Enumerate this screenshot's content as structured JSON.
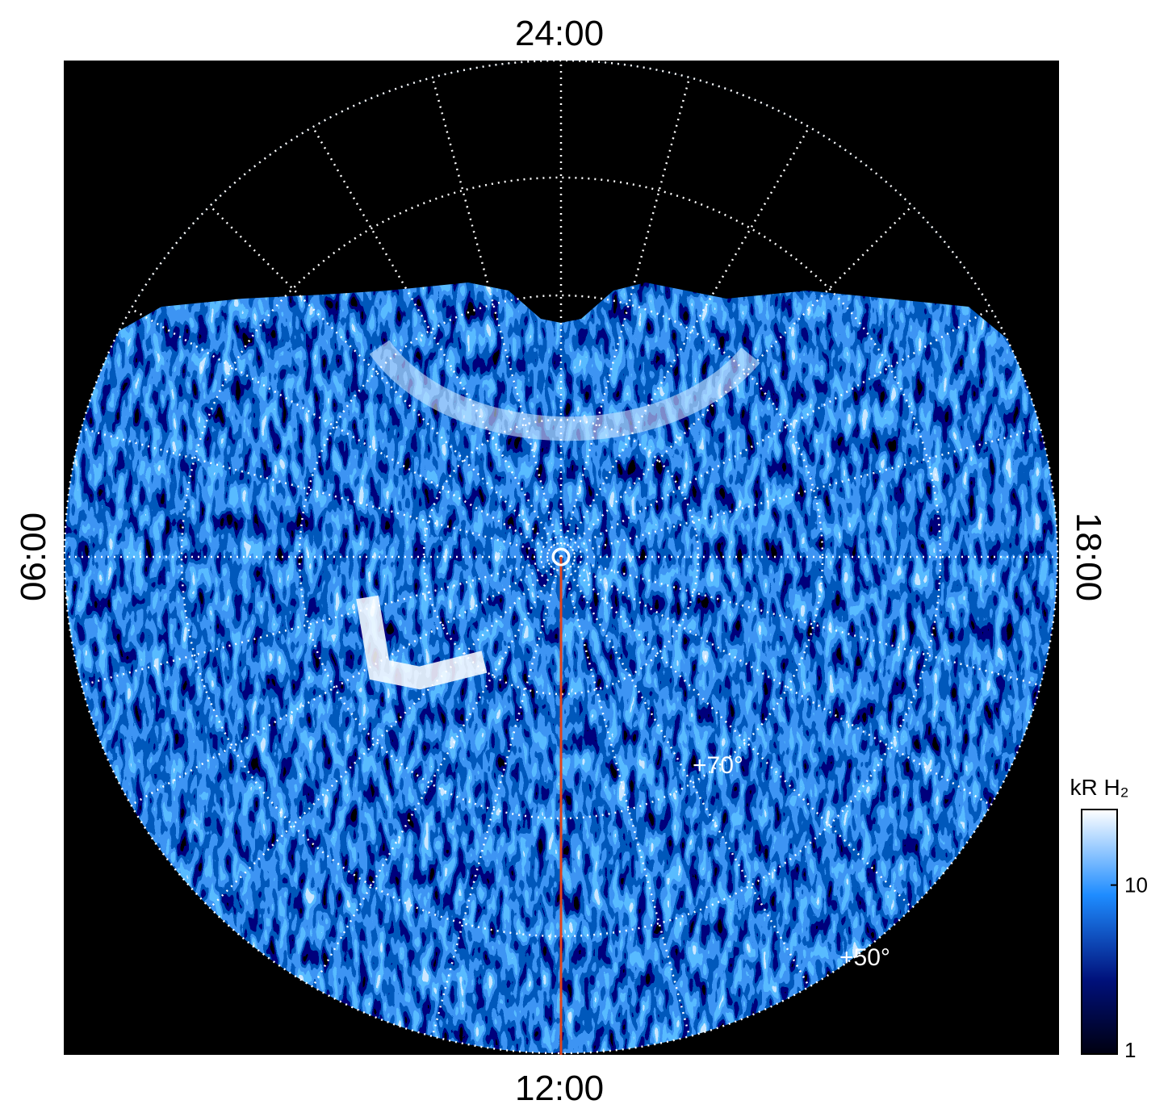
{
  "chart_data": {
    "type": "polar-image",
    "top_label": "24:00",
    "bottom_label": "12:00",
    "left_label": "06:00",
    "right_label": "18:00",
    "annotations": [
      "+70°",
      "+50°"
    ],
    "colorbar": {
      "label": "kR H₂",
      "lim": [
        1,
        28
      ],
      "ticks": [
        1,
        10
      ],
      "log": true
    }
  }
}
